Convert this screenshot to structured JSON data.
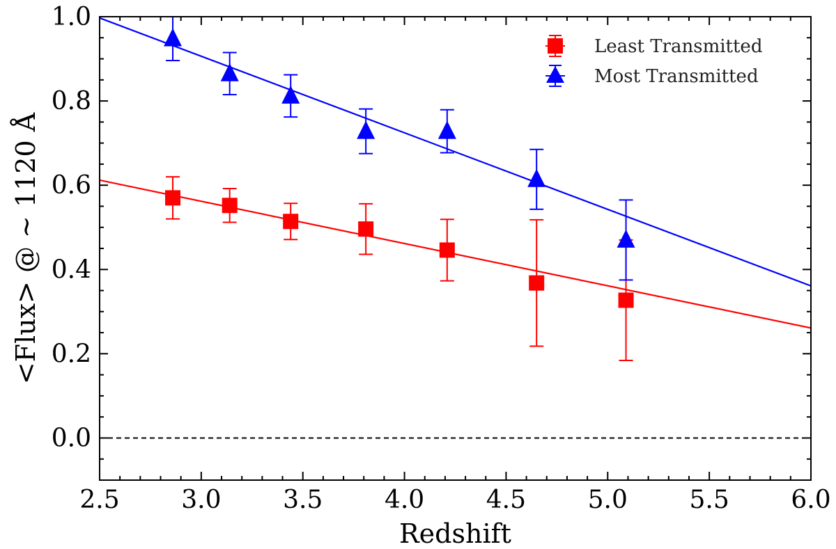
{
  "chart_data": {
    "type": "scatter",
    "title": "",
    "xlabel": "Redshift",
    "ylabel": "<Flux> @  ~ 1120 Å",
    "xlim": [
      2.5,
      6.0
    ],
    "ylim": [
      -0.1,
      1.0
    ],
    "xticks": [
      2.5,
      3.0,
      3.5,
      4.0,
      4.5,
      5.0,
      5.5,
      6.0
    ],
    "xtick_labels": [
      "2.5",
      "3.0",
      "3.5",
      "4.0",
      "4.5",
      "5.0",
      "5.5",
      "6.0"
    ],
    "yticks": [
      0.0,
      0.2,
      0.4,
      0.6,
      0.8,
      1.0
    ],
    "ytick_labels": [
      "0.0",
      "0.2",
      "0.4",
      "0.6",
      "0.8",
      "1.0"
    ],
    "reference_line": {
      "y": 0.0,
      "style": "dashed",
      "color": "#000000"
    },
    "legend_position": "top-right",
    "series": [
      {
        "name": "Least Transmitted",
        "marker": "square",
        "color": "#ff0000",
        "x": [
          2.86,
          3.14,
          3.44,
          3.81,
          4.21,
          4.65,
          5.09
        ],
        "y": [
          0.57,
          0.552,
          0.514,
          0.496,
          0.446,
          0.368,
          0.327
        ],
        "yerr": [
          0.05,
          0.04,
          0.043,
          0.06,
          0.073,
          0.15,
          0.143
        ],
        "fit": {
          "x": [
            2.5,
            6.0
          ],
          "y": [
            0.612,
            0.261
          ]
        }
      },
      {
        "name": "Most Transmitted",
        "marker": "triangle",
        "color": "#0000ff",
        "x": [
          2.86,
          3.14,
          3.44,
          3.81,
          4.21,
          4.65,
          5.09
        ],
        "y": [
          0.948,
          0.865,
          0.812,
          0.728,
          0.728,
          0.614,
          0.47
        ],
        "yerr": [
          0.052,
          0.05,
          0.05,
          0.053,
          0.051,
          0.071,
          0.095
        ],
        "fit": {
          "x": [
            2.5,
            6.0
          ],
          "y": [
            0.997,
            0.361
          ]
        }
      }
    ]
  }
}
